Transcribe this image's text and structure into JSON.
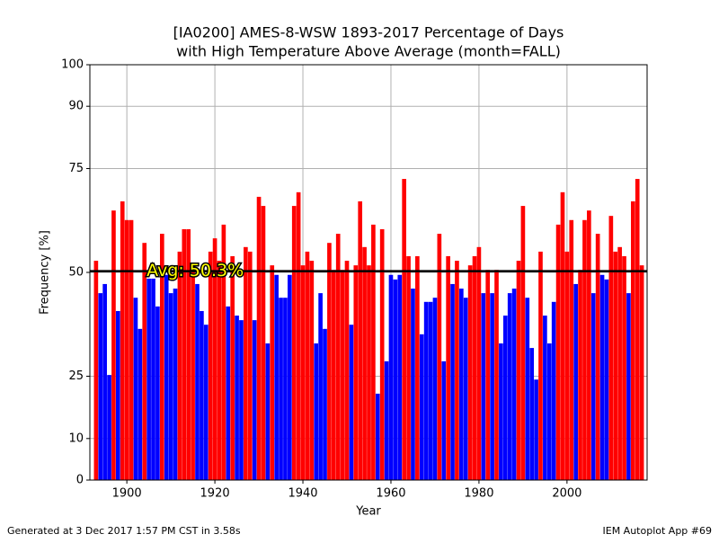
{
  "chart_data": {
    "type": "bar",
    "title": "[IA0200] AMES-8-WSW 1893-2017 Percentage of Days",
    "subtitle": "with High Temperature Above Average (month=FALL)",
    "x_label": "Year",
    "y_label": "Frequency [%]",
    "x": [
      1893,
      1894,
      1895,
      1896,
      1897,
      1898,
      1899,
      1900,
      1901,
      1902,
      1903,
      1904,
      1905,
      1906,
      1907,
      1908,
      1909,
      1910,
      1911,
      1912,
      1913,
      1914,
      1915,
      1916,
      1917,
      1918,
      1919,
      1920,
      1921,
      1922,
      1923,
      1924,
      1925,
      1926,
      1927,
      1928,
      1929,
      1930,
      1931,
      1932,
      1933,
      1934,
      1935,
      1936,
      1937,
      1938,
      1939,
      1940,
      1941,
      1942,
      1943,
      1944,
      1945,
      1946,
      1947,
      1948,
      1949,
      1950,
      1951,
      1952,
      1953,
      1954,
      1955,
      1956,
      1957,
      1958,
      1959,
      1960,
      1961,
      1962,
      1963,
      1964,
      1965,
      1966,
      1967,
      1968,
      1969,
      1970,
      1971,
      1972,
      1973,
      1974,
      1975,
      1976,
      1977,
      1978,
      1979,
      1980,
      1981,
      1982,
      1983,
      1984,
      1985,
      1986,
      1987,
      1988,
      1989,
      1990,
      1991,
      1992,
      1993,
      1994,
      1995,
      1996,
      1997,
      1998,
      1999,
      2000,
      2001,
      2002,
      2003,
      2004,
      2005,
      2006,
      2007,
      2008,
      2009,
      2010,
      2011,
      2012,
      2013,
      2014,
      2015,
      2016,
      2017
    ],
    "values": [
      52.8,
      45,
      47.2,
      25.3,
      64.9,
      40.7,
      67.1,
      62.6,
      62.6,
      43.9,
      36.4,
      57.1,
      48.5,
      48.5,
      41.8,
      59.3,
      49.4,
      45,
      46.1,
      55,
      60.4,
      60.4,
      51.5,
      47.2,
      40.7,
      37.4,
      55,
      58.2,
      52.8,
      61.5,
      41.8,
      53.9,
      39.6,
      38.5,
      56.1,
      55,
      38.5,
      68.2,
      66,
      32.9,
      51.7,
      49.4,
      43.9,
      43.9,
      49.4,
      66,
      69.3,
      51.7,
      55,
      52.8,
      32.9,
      45,
      36.4,
      57.1,
      50.6,
      59.3,
      50.6,
      52.8,
      37.4,
      51.7,
      67.1,
      56.1,
      51.7,
      61.5,
      20.8,
      60.4,
      28.6,
      49.4,
      48.3,
      49.4,
      72.5,
      53.9,
      46.1,
      53.9,
      35.1,
      42.9,
      42.9,
      43.9,
      59.3,
      28.6,
      53.9,
      47.2,
      52.8,
      46.1,
      43.9,
      51.7,
      53.9,
      56.1,
      45,
      50.6,
      45,
      50.6,
      32.9,
      39.6,
      45,
      46.1,
      52.8,
      66,
      43.9,
      31.8,
      24.2,
      55,
      39.6,
      32.9,
      42.9,
      61.5,
      69.3,
      55,
      62.6,
      47.2,
      50.6,
      62.6,
      64.9,
      45,
      59.3,
      49.4,
      48.3,
      63.6,
      55,
      56.1,
      53.9,
      45,
      67.1,
      72.5,
      51.7
    ],
    "average": 50.3,
    "average_label": "Avg: 50.3%",
    "color_above": "#ff0000",
    "color_below": "#0000ff",
    "xlim": [
      1891.6,
      2018.2
    ],
    "xticks": [
      1900,
      1920,
      1940,
      1960,
      1980,
      2000
    ],
    "ylim": [
      0,
      100
    ],
    "yticks": [
      0,
      10,
      25,
      50,
      75,
      90,
      100
    ],
    "grid": true,
    "footer_left": "Generated at 3 Dec 2017 1:57 PM CST in 3.58s",
    "footer_right": "IEM Autoplot App #69"
  }
}
